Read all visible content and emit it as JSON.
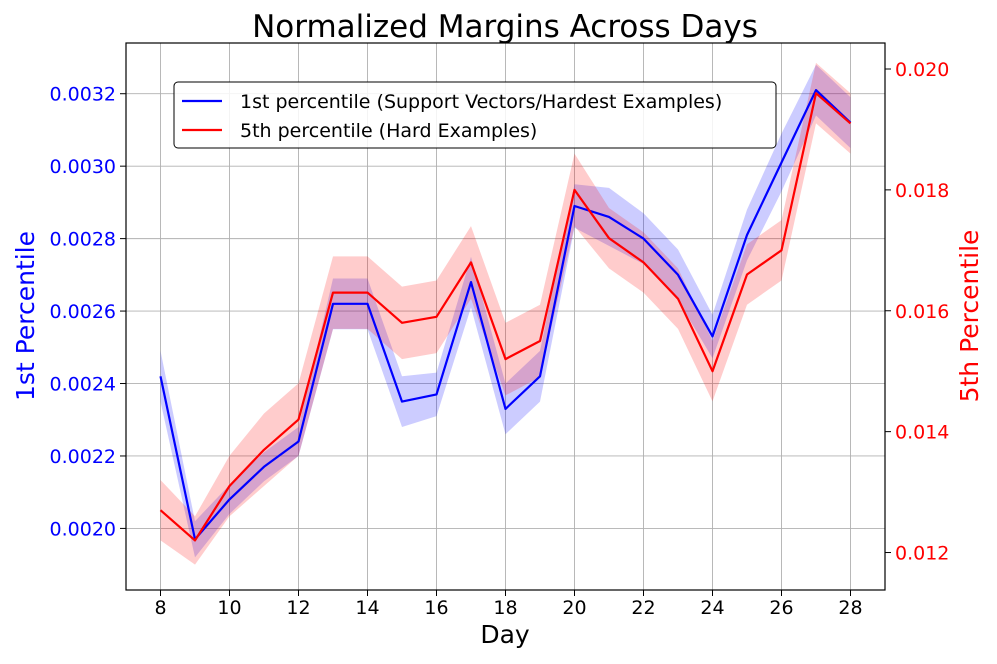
{
  "chart_data": {
    "type": "line",
    "title": "Normalized Margins Across Days",
    "xlabel": "Day",
    "ylabel_left": "1st Percentile",
    "ylabel_right": "5th Percentile",
    "xlim": [
      7,
      29
    ],
    "ylim_left": [
      0.00183,
      0.00334
    ],
    "ylim_right": [
      0.01138,
      0.02043
    ],
    "xticks": [
      8,
      10,
      12,
      14,
      16,
      18,
      20,
      22,
      24,
      26,
      28
    ],
    "yticks_left": [
      "0.0020",
      "0.0022",
      "0.0024",
      "0.0026",
      "0.0028",
      "0.0030",
      "0.0032"
    ],
    "yticks_right": [
      "0.012",
      "0.014",
      "0.016",
      "0.018",
      "0.020"
    ],
    "grid": true,
    "legend_position": "upper-left",
    "x": [
      8,
      9,
      10,
      11,
      12,
      13,
      14,
      15,
      16,
      17,
      18,
      19,
      20,
      21,
      22,
      23,
      24,
      25,
      26,
      27,
      28
    ],
    "series": [
      {
        "name": "1st percentile (Support Vectors/Hardest Examples)",
        "axis": "left",
        "color": "#0000ff",
        "values": [
          0.00242,
          0.00197,
          0.00208,
          0.00217,
          0.00224,
          0.00262,
          0.00262,
          0.00235,
          0.00237,
          0.00268,
          0.00233,
          0.00242,
          0.00289,
          0.00286,
          0.0028,
          0.0027,
          0.00253,
          0.00281,
          0.00301,
          0.00321,
          0.00312
        ],
        "band_half_width": [
          7e-05,
          5e-05,
          4e-05,
          4e-05,
          4e-05,
          7e-05,
          7e-05,
          7e-05,
          6e-05,
          7e-05,
          7e-05,
          7e-05,
          6e-05,
          8e-05,
          7e-05,
          7e-05,
          6e-05,
          7e-05,
          8e-05,
          7e-05,
          7e-05
        ]
      },
      {
        "name": "5th percentile (Hard Examples)",
        "axis": "right",
        "color": "#ff0000",
        "values": [
          0.0127,
          0.0122,
          0.0131,
          0.0137,
          0.0142,
          0.0163,
          0.0163,
          0.0158,
          0.0159,
          0.0168,
          0.0152,
          0.0155,
          0.018,
          0.0172,
          0.0168,
          0.0162,
          0.015,
          0.0166,
          0.017,
          0.0196,
          0.0191
        ],
        "band_half_width": [
          0.0005,
          0.0004,
          0.0005,
          0.0006,
          0.0006,
          0.0006,
          0.0006,
          0.0006,
          0.0006,
          0.0006,
          0.0006,
          0.0006,
          0.0006,
          0.0005,
          0.0005,
          0.0005,
          0.0005,
          0.0005,
          0.0005,
          0.0005,
          0.0005
        ]
      }
    ],
    "colors": {
      "left_axis": "#0000ff",
      "right_axis": "#ff0000",
      "grid": "#b0b0b0"
    }
  }
}
